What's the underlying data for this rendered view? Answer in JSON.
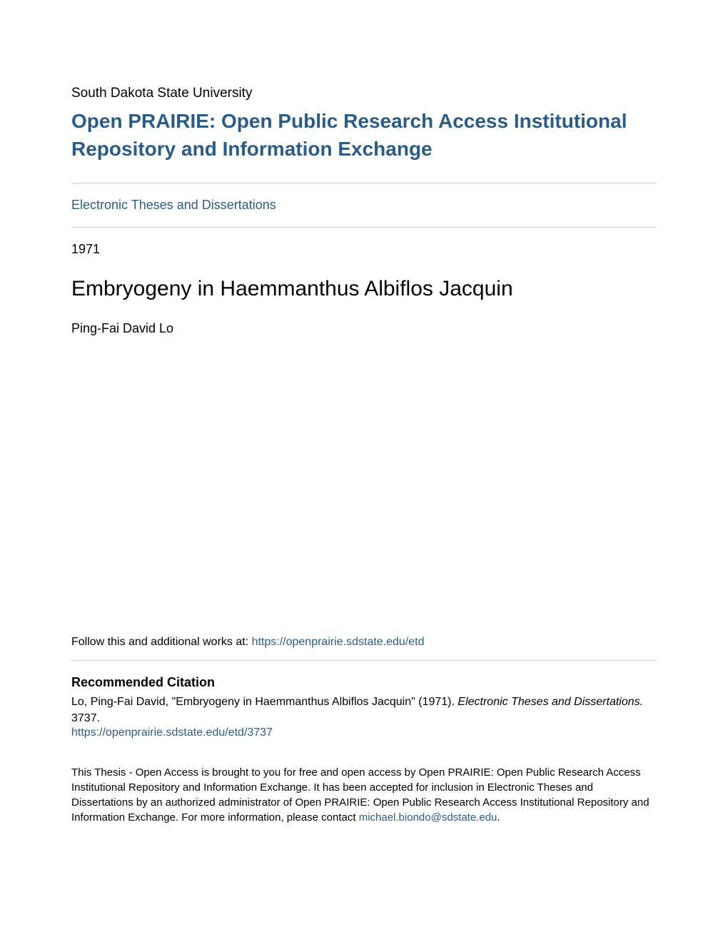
{
  "header": {
    "institution": "South Dakota State University",
    "repository_title": "Open PRAIRIE: Open Public Research Access Institutional Repository and Information Exchange",
    "collection_link": "Electronic Theses and Dissertations"
  },
  "document": {
    "year": "1971",
    "title": "Embryogeny in Haemmanthus Albiflos Jacquin",
    "author": "Ping-Fai David Lo"
  },
  "follow": {
    "prefix": "Follow this and additional works at: ",
    "url": "https://openprairie.sdstate.edu/etd"
  },
  "citation": {
    "heading": "Recommended Citation",
    "text_part1": "Lo, Ping-Fai David, \"Embryogeny in Haemmanthus Albiflos Jacquin\" (1971). ",
    "text_italic": "Electronic Theses and Dissertations.",
    "text_part2": " 3737.",
    "url": "https://openprairie.sdstate.edu/etd/3737"
  },
  "access": {
    "text_part1": "This Thesis - Open Access is brought to you for free and open access by Open PRAIRIE: Open Public Research Access Institutional Repository and Information Exchange. It has been accepted for inclusion in Electronic Theses and Dissertations by an authorized administrator of Open PRAIRIE: Open Public Research Access Institutional Repository and Information Exchange. For more information, please contact ",
    "email": "michael.biondo@sdstate.edu",
    "text_part2": "."
  },
  "colors": {
    "link_color": "#2b5c85",
    "text_color": "#000000",
    "divider_color": "#cccccc",
    "background_color": "#ffffff"
  }
}
